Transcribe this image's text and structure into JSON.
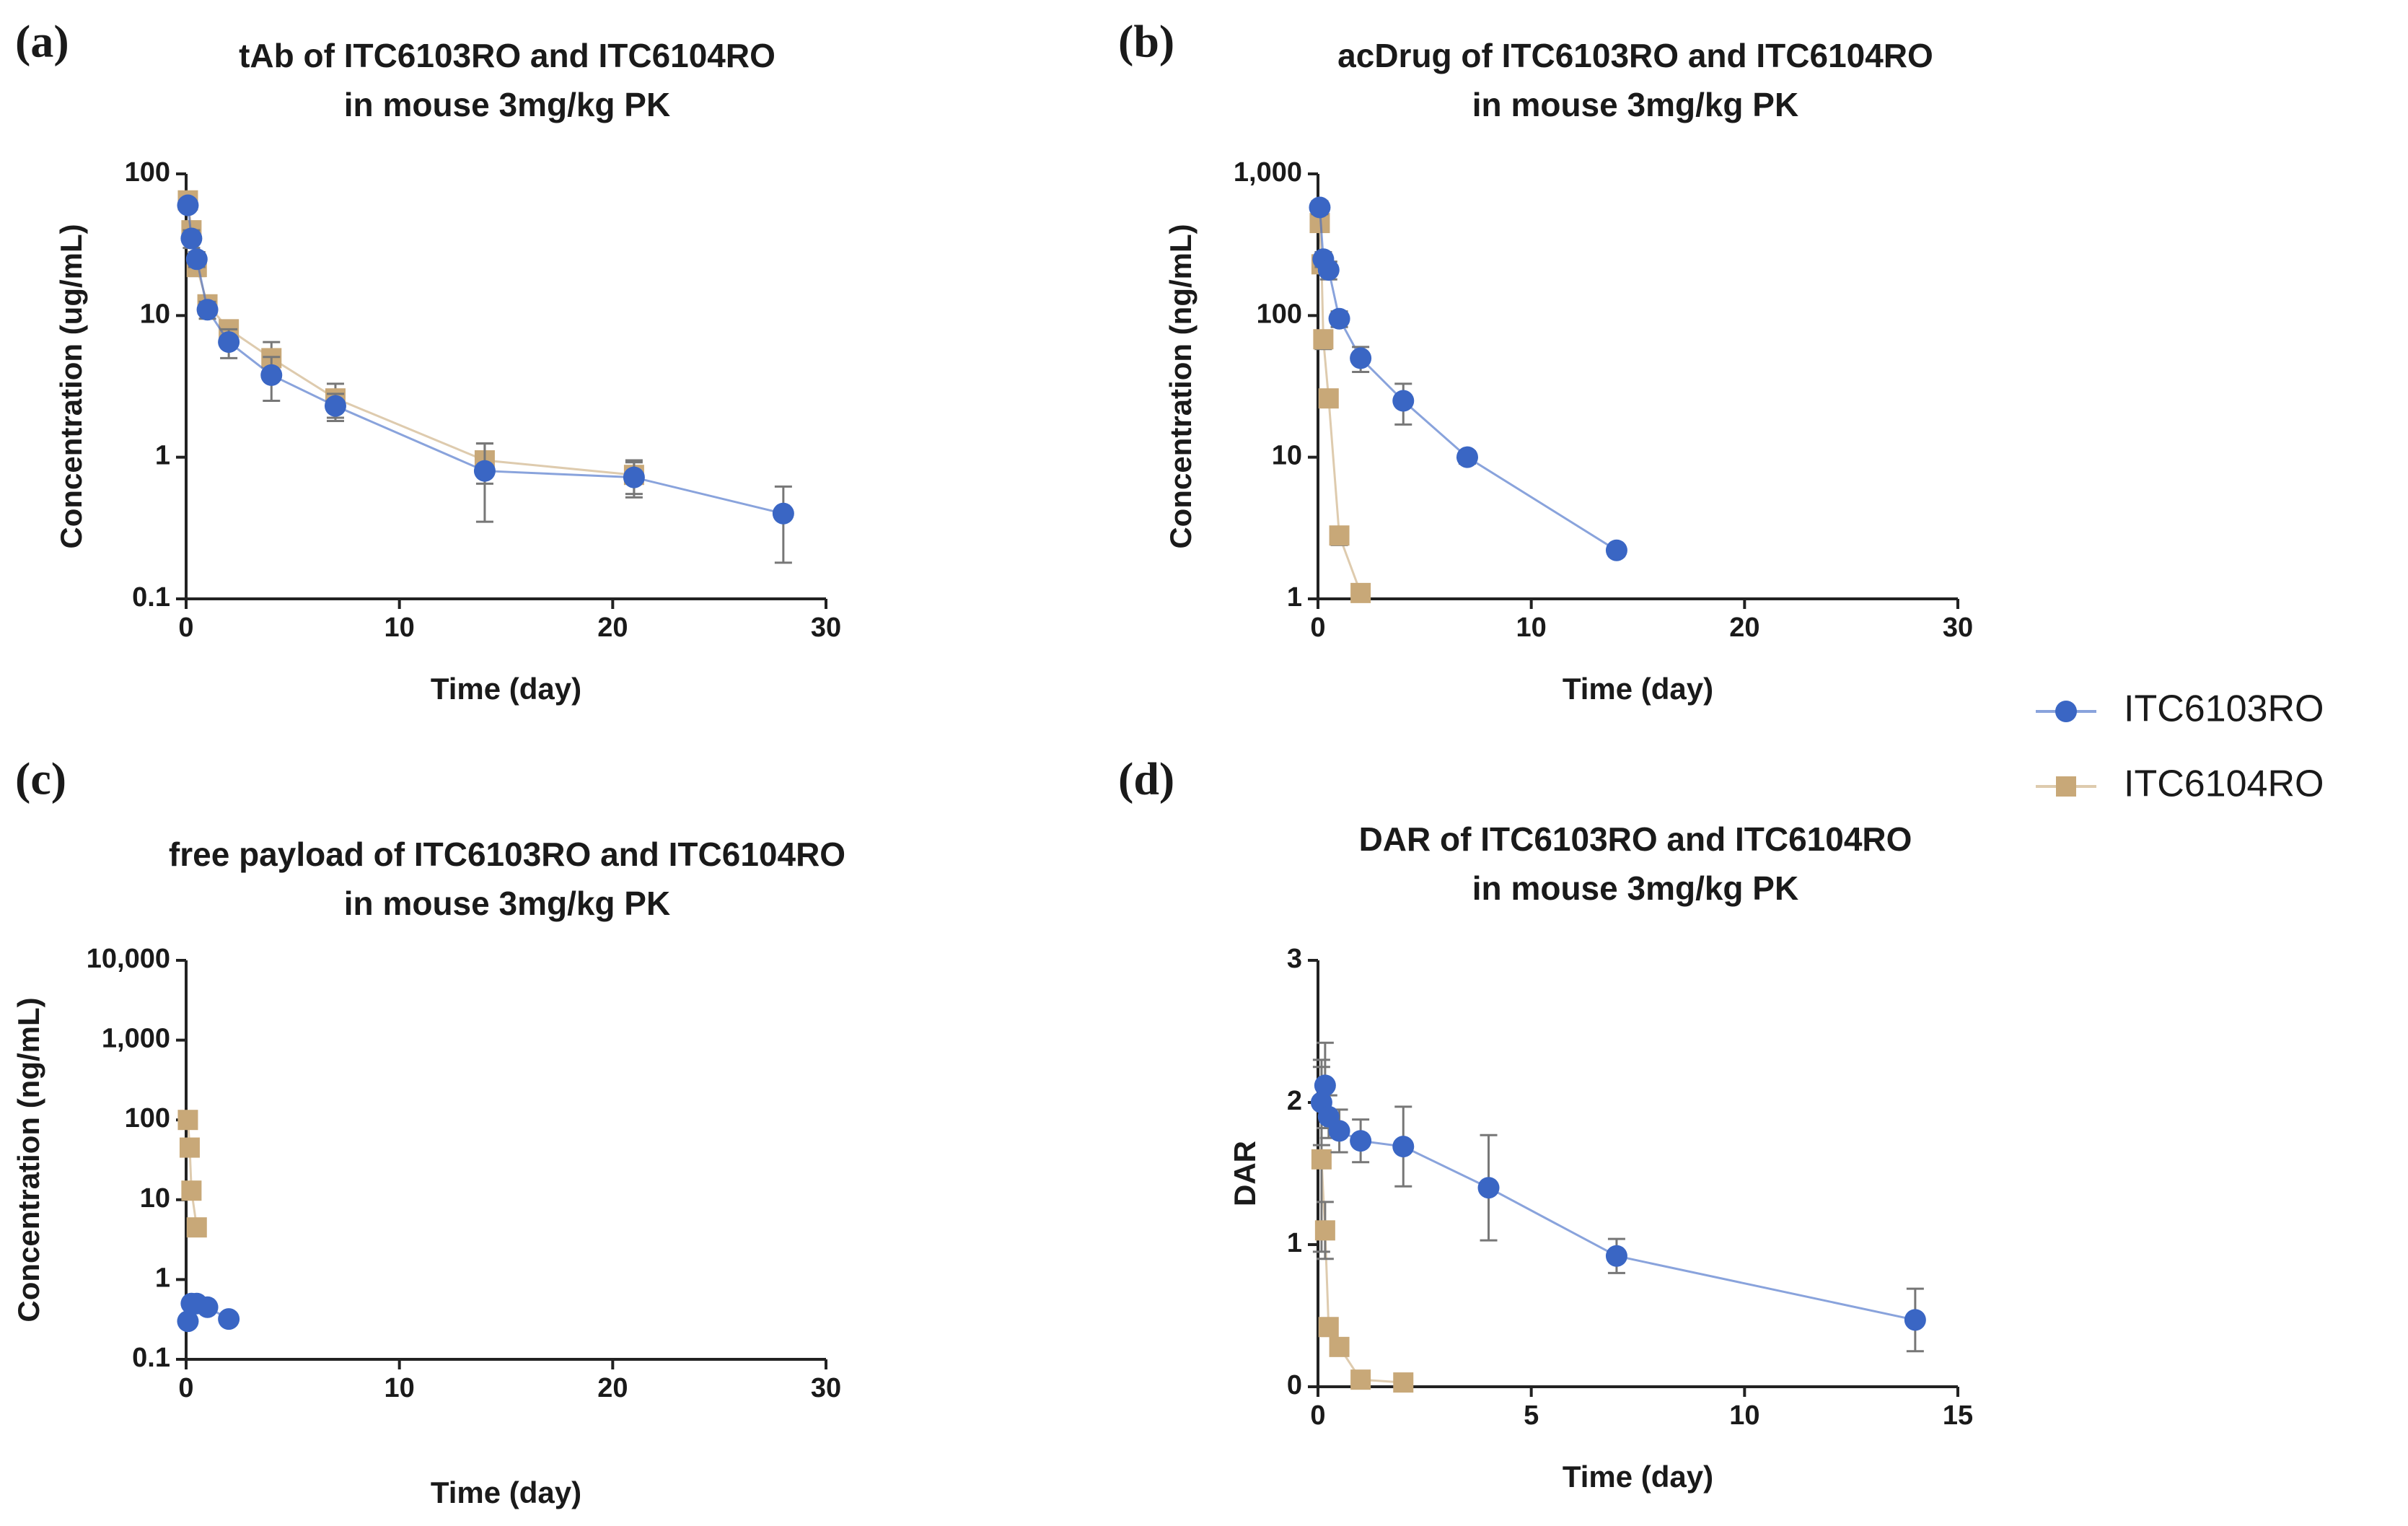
{
  "chart_data": [
    {
      "type": "line",
      "panel": "(a)",
      "title": [
        "tAb of ITC6103RO and ITC6104RO",
        "in mouse 3mg/kg PK"
      ],
      "x_label": "Time (day)",
      "y_label": "Concentration  (ug/mL)",
      "log_y": true,
      "xlim": [
        0,
        30
      ],
      "xticks": [
        0,
        10,
        20,
        30
      ],
      "ylim": [
        0.1,
        100
      ],
      "yticks": [
        0.1,
        1,
        10,
        100
      ],
      "series": [
        {
          "name": "ITC6103RO",
          "color": "#3a66c4",
          "marker": "circle",
          "x": [
            0.083,
            0.25,
            0.5,
            1,
            2,
            4,
            7,
            14,
            21,
            28
          ],
          "values": [
            60,
            35,
            25,
            11,
            6.5,
            3.8,
            2.3,
            0.8,
            0.72,
            0.4
          ],
          "errors": [
            5,
            5,
            3,
            1.5,
            1.5,
            1.3,
            0.5,
            0.45,
            0.2,
            0.22
          ]
        },
        {
          "name": "ITC6104RO",
          "color": "#c8a878",
          "marker": "square",
          "x": [
            0.083,
            0.25,
            0.5,
            1,
            2,
            4,
            7,
            14,
            21
          ],
          "values": [
            65,
            40,
            22,
            12,
            8,
            5,
            2.6,
            0.95,
            0.75
          ],
          "errors": [
            5,
            5,
            3,
            1.5,
            1,
            1.5,
            0.7,
            0.3,
            0.2
          ]
        }
      ]
    },
    {
      "type": "line",
      "panel": "(b)",
      "title": [
        "acDrug of ITC6103RO and ITC6104RO",
        "in mouse 3mg/kg PK"
      ],
      "x_label": "Time (day)",
      "y_label": "Concentration (ng/mL)",
      "log_y": true,
      "xlim": [
        0,
        30
      ],
      "xticks": [
        0,
        10,
        20,
        30
      ],
      "ylim": [
        1,
        1000
      ],
      "yticks": [
        1,
        10,
        100,
        {
          "value": 1000,
          "label": "1,000"
        }
      ],
      "series": [
        {
          "name": "ITC6103RO",
          "color": "#3a66c4",
          "marker": "circle",
          "x": [
            0.083,
            0.25,
            0.5,
            1,
            2,
            4,
            7,
            14
          ],
          "values": [
            580,
            250,
            210,
            95,
            50,
            25,
            10,
            2.2
          ],
          "errors": [
            60,
            30,
            30,
            12,
            10,
            8,
            1,
            0.2
          ]
        },
        {
          "name": "ITC6104RO",
          "color": "#c8a878",
          "marker": "square",
          "x": [
            0.083,
            0.167,
            0.25,
            0.5,
            1,
            2
          ],
          "values": [
            450,
            230,
            68,
            26,
            2.8,
            1.1
          ],
          "errors": [
            50,
            20,
            10,
            3,
            0.4,
            0.05
          ]
        }
      ]
    },
    {
      "type": "line",
      "panel": "(c)",
      "title": [
        "free payload of ITC6103RO and ITC6104RO",
        "in mouse 3mg/kg PK"
      ],
      "x_label": "Time (day)",
      "y_label": "Concentration (ng/mL)",
      "log_y": true,
      "xlim": [
        0,
        30
      ],
      "xticks": [
        0,
        10,
        20,
        30
      ],
      "ylim": [
        0.1,
        10000
      ],
      "yticks": [
        0.1,
        1,
        10,
        100,
        {
          "value": 1000,
          "label": "1,000"
        },
        {
          "value": 10000,
          "label": "10,000"
        }
      ],
      "series": [
        {
          "name": "ITC6103RO",
          "color": "#3a66c4",
          "marker": "circle",
          "x": [
            0.083,
            0.25,
            0.5,
            1,
            2
          ],
          "values": [
            0.3,
            0.5,
            0.5,
            0.45,
            0.32
          ]
        },
        {
          "name": "ITC6104RO",
          "color": "#c8a878",
          "marker": "square",
          "x": [
            0.083,
            0.167,
            0.25,
            0.5
          ],
          "values": [
            100,
            45,
            13,
            4.5
          ]
        }
      ]
    },
    {
      "type": "line",
      "panel": "(d)",
      "title": [
        "DAR of ITC6103RO and ITC6104RO",
        "in mouse 3mg/kg PK"
      ],
      "x_label": "Time (day)",
      "y_label": "DAR",
      "log_y": false,
      "xlim": [
        0,
        15
      ],
      "xticks": [
        0,
        5,
        10,
        15
      ],
      "ylim": [
        0,
        3
      ],
      "yticks": [
        0,
        1,
        2,
        3
      ],
      "series": [
        {
          "name": "ITC6103RO",
          "color": "#3a66c4",
          "marker": "circle",
          "x": [
            0.083,
            0.167,
            0.25,
            0.5,
            1,
            2,
            4,
            7,
            14
          ],
          "values": [
            2.0,
            2.12,
            1.9,
            1.8,
            1.73,
            1.69,
            1.4,
            0.92,
            0.47
          ],
          "errors": [
            0.3,
            0.3,
            0.15,
            0.15,
            0.15,
            0.28,
            0.37,
            0.12,
            0.22
          ]
        },
        {
          "name": "ITC6104RO",
          "color": "#c8a878",
          "marker": "square",
          "x": [
            0.083,
            0.167,
            0.25,
            0.5,
            1,
            2
          ],
          "values": [
            1.6,
            1.1,
            0.42,
            0.28,
            0.05,
            0.03
          ],
          "errors": [
            0.65,
            0.2,
            0.05,
            0.05,
            0.02,
            0.02
          ]
        }
      ]
    }
  ]
}
